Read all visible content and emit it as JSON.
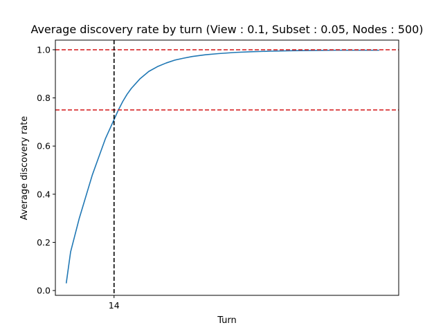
{
  "chart_data": {
    "type": "line",
    "title": "Average discovery rate by turn (View : 0.1, Subset : 0.05, Nodes : 500)",
    "xlabel": "Turn",
    "ylabel": "Average discovery rate",
    "xlim": [
      0.5,
      79.5
    ],
    "ylim": [
      -0.02,
      1.04
    ],
    "x_ticks": [
      14
    ],
    "y_ticks": [
      0.0,
      0.2,
      0.4,
      0.6,
      0.8,
      1.0
    ],
    "grid": false,
    "series": [
      {
        "color": "#1f77b4",
        "x": [
          3,
          4,
          5,
          6,
          7,
          8,
          9,
          10,
          11,
          12,
          13,
          14,
          15,
          16,
          17,
          18,
          19,
          20,
          22,
          24,
          26,
          28,
          30,
          32,
          35,
          38,
          42,
          46,
          50,
          55,
          60,
          65,
          70,
          75
        ],
        "y": [
          0.03,
          0.16,
          0.23,
          0.3,
          0.36,
          0.42,
          0.48,
          0.53,
          0.58,
          0.63,
          0.67,
          0.71,
          0.75,
          0.785,
          0.815,
          0.84,
          0.86,
          0.88,
          0.91,
          0.93,
          0.945,
          0.957,
          0.965,
          0.972,
          0.979,
          0.984,
          0.989,
          0.992,
          0.994,
          0.996,
          0.997,
          0.998,
          0.998,
          0.998
        ]
      }
    ],
    "reference_lines": [
      {
        "orientation": "horizontal",
        "value": 1.0,
        "color": "#d62728",
        "style": "dashed"
      },
      {
        "orientation": "horizontal",
        "value": 0.75,
        "color": "#d62728",
        "style": "dashed"
      },
      {
        "orientation": "vertical",
        "value": 14,
        "color": "#000000",
        "style": "dashed"
      }
    ]
  }
}
